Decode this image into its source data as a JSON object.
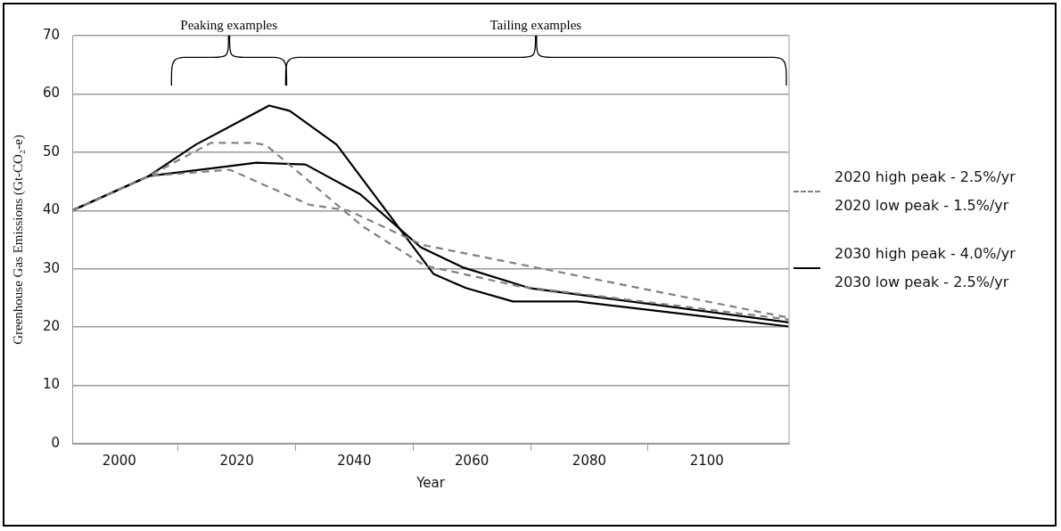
{
  "chart_data": {
    "type": "line",
    "xlabel": "Year",
    "ylabel": "Greenhouse Gas Emissions (Gt-CO₂-e)",
    "xlim": [
      1992,
      2114
    ],
    "xticks": [
      2000,
      {
        "value": 2010,
        "label": null
      },
      2020,
      {
        "value": 2030,
        "label": null
      },
      2040,
      {
        "value": 2050,
        "label": null
      },
      2060,
      {
        "value": 2070,
        "label": null
      },
      2080,
      {
        "value": 2090,
        "label": null
      },
      2100
    ],
    "ylim": [
      0,
      70
    ],
    "yticks": [
      0,
      10,
      20,
      30,
      40,
      50,
      60,
      70
    ],
    "grid": "y",
    "legend": "right",
    "marker": "none",
    "series": [
      {
        "name": "2020 high peak - 2.5%/yr",
        "color": "#808080",
        "line_style": "dashed",
        "x": [
          1992,
          2005,
          2015.6,
          2023,
          2025,
          2041.4,
          2051.9,
          2068,
          2114
        ],
        "values": [
          40,
          45.9,
          51.6,
          51.6,
          51.2,
          37.3,
          30.6,
          27,
          21.3
        ]
      },
      {
        "name": "2020 low peak - 1.5%/yr",
        "color": "#808080",
        "line_style": "dashed",
        "x": [
          1992,
          2005,
          2018.8,
          2032.3,
          2039,
          2051.6,
          2114
        ],
        "values": [
          40,
          45.9,
          47,
          41,
          40,
          34.1,
          21.6
        ]
      },
      {
        "name": "2030 high peak - 4.0%/yr",
        "color": "#000000",
        "line_style": "solid",
        "x": [
          1992,
          2005,
          2013,
          2025.5,
          2029,
          2037,
          2053.5,
          2059,
          2067,
          2078,
          2114
        ],
        "values": [
          40,
          45.9,
          51.3,
          58,
          57.1,
          51.3,
          29.1,
          26.7,
          24.4,
          24.4,
          20.1
        ]
      },
      {
        "name": "2030 low peak - 2.5%/yr",
        "color": "#000000",
        "line_style": "solid",
        "x": [
          1992,
          2005,
          2023.3,
          2031.7,
          2041,
          2051.3,
          2058.6,
          2069.8,
          2114
        ],
        "values": [
          40,
          45.9,
          48.2,
          47.9,
          42.8,
          33.7,
          30.2,
          26.7,
          20.8
        ]
      }
    ],
    "annotations": [
      "Peaking examples",
      "Tailing examples"
    ]
  }
}
